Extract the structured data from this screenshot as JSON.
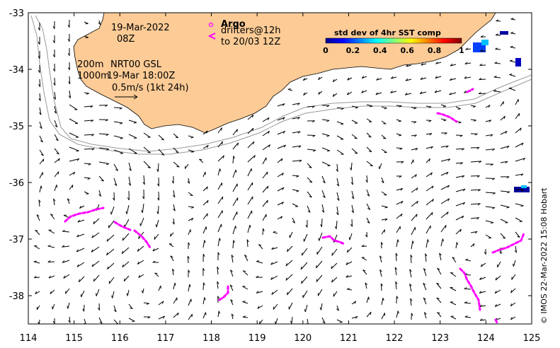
{
  "map": {
    "x_ticks": [
      "114",
      "115",
      "116",
      "117",
      "118",
      "119",
      "120",
      "121",
      "122",
      "123",
      "124",
      "125"
    ],
    "y_ticks": [
      "-33",
      "-34",
      "-35",
      "-36",
      "-37",
      "-38"
    ],
    "lon_range": [
      114,
      125
    ],
    "lat_range": [
      -38.5,
      -33
    ],
    "colors": {
      "land": "#fccb96",
      "drifter": "#ff00ff",
      "contour": "#999999",
      "arrow": "#000000"
    }
  },
  "annotations": {
    "date": "19-Mar-2022",
    "time": "08Z",
    "argo_title": "Argo",
    "drifter_label": "drifters@12h",
    "drifter_until": "to 20/03 12Z",
    "contour_200": "200m",
    "product": "NRT00 GSL",
    "contour_1000": "1000m",
    "product_time": "19-Mar 18:00Z",
    "scale_label": "0.5m/s (1kt 24h)"
  },
  "colorbar": {
    "title": "std dev of 4hr SST comp",
    "labels": [
      "0",
      "0.2",
      "0.4",
      "0.6",
      "0.8",
      "1"
    ]
  },
  "credit": "© IMOS 22-Mar-2022 15:08 Hobart"
}
